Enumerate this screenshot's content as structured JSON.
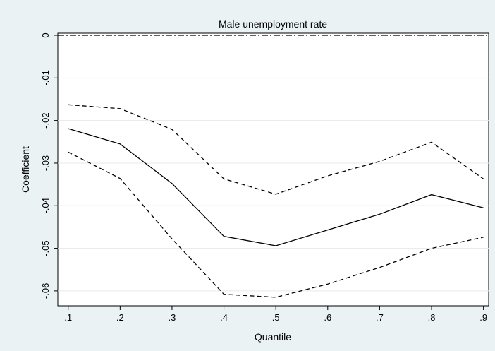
{
  "chart_data": {
    "type": "line",
    "title": "Male unemployment rate",
    "xlabel": "Quantile",
    "ylabel": "Coefficient",
    "x": [
      0.1,
      0.2,
      0.3,
      0.4,
      0.5,
      0.6,
      0.7,
      0.8,
      0.9
    ],
    "x_tick_labels": [
      ".1",
      ".2",
      ".3",
      ".4",
      ".5",
      ".6",
      ".7",
      ".8",
      ".9"
    ],
    "y_ticks": [
      0,
      -0.01,
      -0.02,
      -0.03,
      -0.04,
      -0.05,
      -0.06
    ],
    "y_tick_labels": [
      "0",
      "-.01",
      "-.02",
      "-.03",
      "-.04",
      "-.05",
      "-.06"
    ],
    "xlim": [
      0.08,
      0.91
    ],
    "ylim": [
      -0.0635,
      0.0005
    ],
    "grid": true,
    "legend": "none",
    "reference_line": {
      "y": 0,
      "style": "dash-dot"
    },
    "series": [
      {
        "role": "upper_bound",
        "style": "dashed",
        "values": [
          -0.0163,
          -0.0172,
          -0.0221,
          -0.0337,
          -0.0373,
          -0.033,
          -0.0296,
          -0.0251,
          -0.0337
        ]
      },
      {
        "role": "estimate",
        "style": "solid",
        "values": [
          -0.0219,
          -0.0255,
          -0.0348,
          -0.0472,
          -0.0494,
          -0.0457,
          -0.042,
          -0.0374,
          -0.0405
        ]
      },
      {
        "role": "lower_bound",
        "style": "dashed",
        "values": [
          -0.0274,
          -0.0336,
          -0.0478,
          -0.0608,
          -0.0615,
          -0.0584,
          -0.0545,
          -0.05,
          -0.0474
        ]
      }
    ]
  }
}
